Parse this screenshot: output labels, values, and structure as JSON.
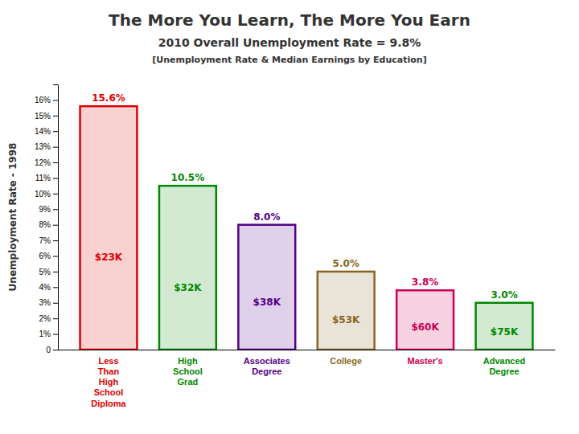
{
  "chart_data": {
    "type": "bar",
    "title": "The More You Learn, The More You Earn",
    "subtitle": [
      "2010 Overall Unemployment Rate = 9.8%",
      "[Unemployment Rate & Median Earnings by Education]"
    ],
    "ylabel": "Unemployment Rate - 1998",
    "categories": [
      "Less\nThan\nHigh\nSchool\nDiploma",
      "High\nSchool\nGrad",
      "Associates\nDegree",
      "College",
      "Master's",
      "Advanced\nDegree"
    ],
    "values": [
      15.6,
      10.5,
      8.0,
      5.0,
      3.8,
      3.0
    ],
    "value_labels": [
      "15.6%",
      "10.5%",
      "8.0%",
      "5.0%",
      "3.8%",
      "3.0%"
    ],
    "data_labels": true,
    "earnings": [
      "$23K",
      "$32K",
      "$38K",
      "$53K",
      "$60K",
      "$75K"
    ],
    "colors": [
      "#dd0000",
      "#008800",
      "#550088",
      "#886622",
      "#cc0055",
      "#008800"
    ],
    "ylim": [
      0,
      17
    ],
    "yticks": [
      0,
      {
        "value": 1,
        "label": "1%"
      },
      {
        "value": 2,
        "label": "2%"
      },
      {
        "value": 3,
        "label": "3%"
      },
      {
        "value": 4,
        "label": "4%"
      },
      {
        "value": 5,
        "label": "5%"
      },
      {
        "value": 6,
        "label": "6%"
      },
      {
        "value": 7,
        "label": "7%"
      },
      {
        "value": 8,
        "label": "8%"
      },
      {
        "value": 9,
        "label": "9%"
      },
      {
        "value": 10,
        "label": "10%"
      },
      {
        "value": 11,
        "label": "11%"
      },
      {
        "value": 12,
        "label": "12%"
      },
      {
        "value": 13,
        "label": "13%"
      },
      {
        "value": 14,
        "label": "14%"
      },
      {
        "value": 15,
        "label": "15%"
      },
      {
        "value": 16,
        "label": "16%"
      }
    ],
    "grid": false
  }
}
